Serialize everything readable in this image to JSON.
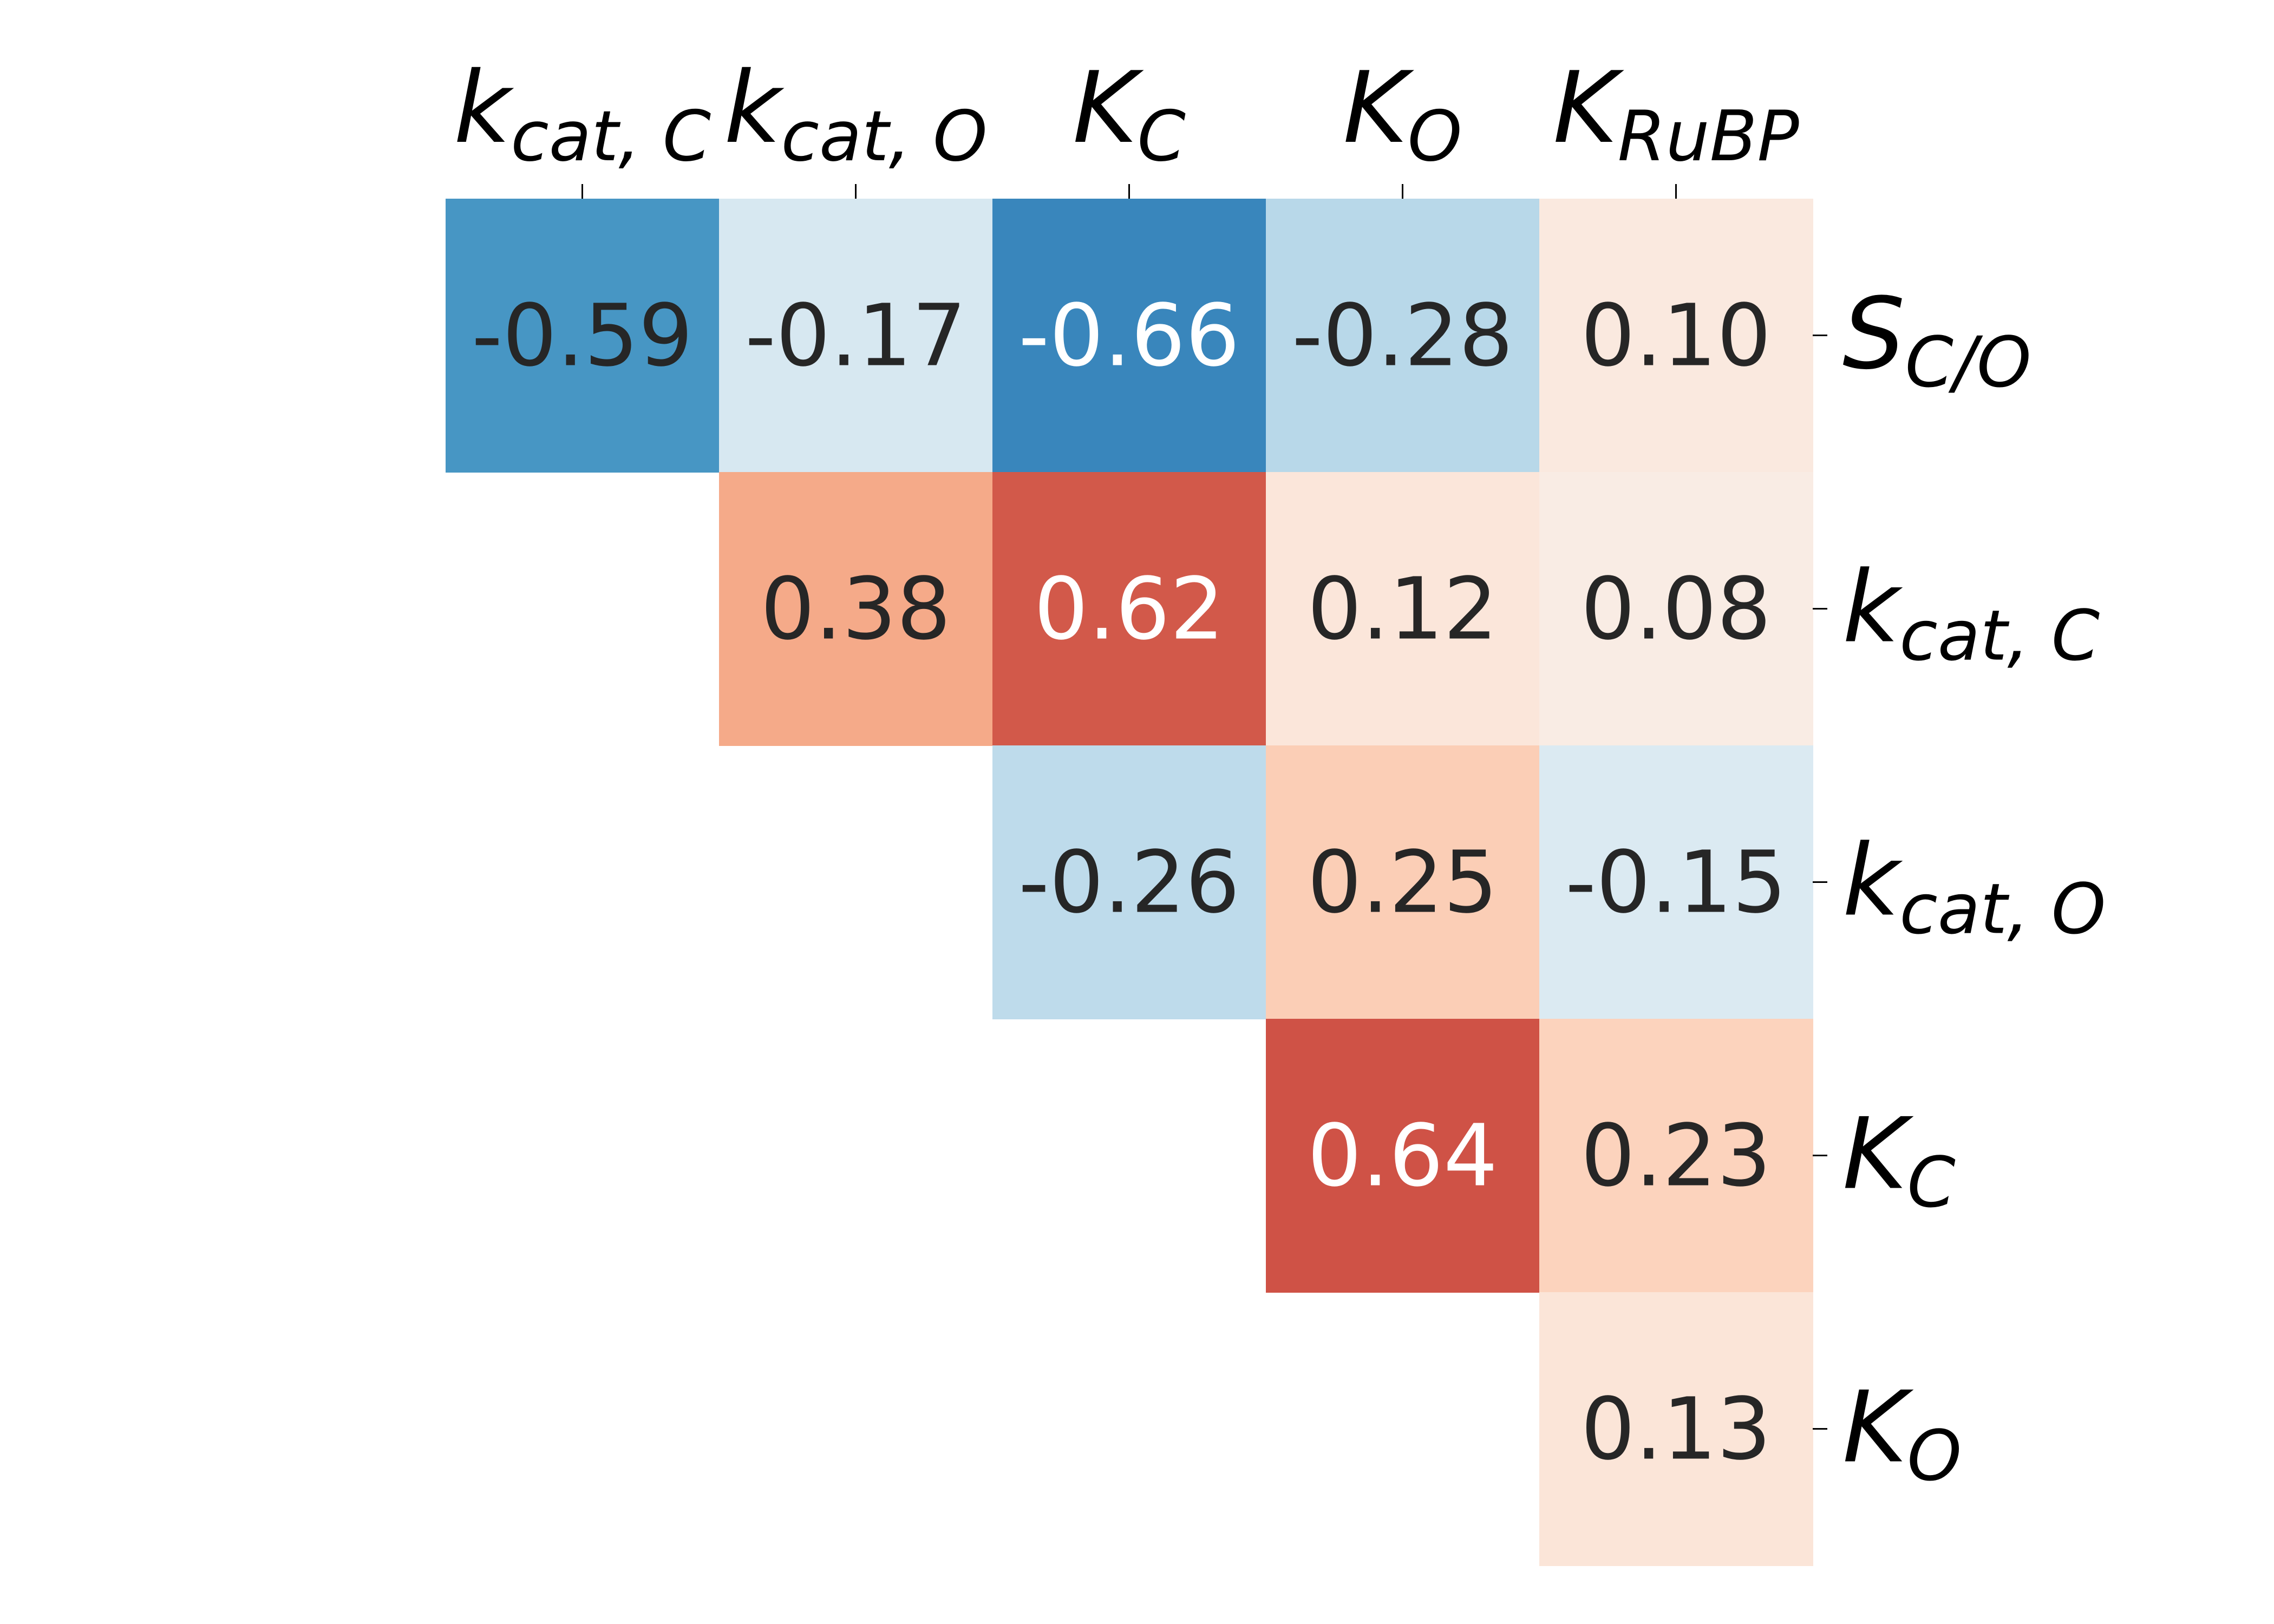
{
  "chart_data": {
    "type": "heatmap",
    "title": "",
    "xlabel": "",
    "ylabel": "",
    "x_labels": [
      {
        "base": "k",
        "sub": "cat, C"
      },
      {
        "base": "k",
        "sub": "cat, O"
      },
      {
        "base": "K",
        "sub": "C"
      },
      {
        "base": "K",
        "sub": "O"
      },
      {
        "base": "K",
        "sub": "RuBP"
      }
    ],
    "y_labels": [
      {
        "base": "S",
        "sub": "C/O"
      },
      {
        "base": "k",
        "sub": "cat, C"
      },
      {
        "base": "k",
        "sub": "cat, O"
      },
      {
        "base": "K",
        "sub": "C"
      },
      {
        "base": "K",
        "sub": "O"
      }
    ],
    "cells": [
      {
        "row": 0,
        "col": 0,
        "value": -0.59,
        "label": "-0.59"
      },
      {
        "row": 0,
        "col": 1,
        "value": -0.17,
        "label": "-0.17"
      },
      {
        "row": 0,
        "col": 2,
        "value": -0.66,
        "label": "-0.66"
      },
      {
        "row": 0,
        "col": 3,
        "value": -0.28,
        "label": "-0.28"
      },
      {
        "row": 0,
        "col": 4,
        "value": 0.1,
        "label": "0.10"
      },
      {
        "row": 1,
        "col": 1,
        "value": 0.38,
        "label": "0.38"
      },
      {
        "row": 1,
        "col": 2,
        "value": 0.62,
        "label": "0.62"
      },
      {
        "row": 1,
        "col": 3,
        "value": 0.12,
        "label": "0.12"
      },
      {
        "row": 1,
        "col": 4,
        "value": 0.08,
        "label": "0.08"
      },
      {
        "row": 2,
        "col": 2,
        "value": -0.26,
        "label": "-0.26"
      },
      {
        "row": 2,
        "col": 3,
        "value": 0.25,
        "label": "0.25"
      },
      {
        "row": 2,
        "col": 4,
        "value": -0.15,
        "label": "-0.15"
      },
      {
        "row": 3,
        "col": 3,
        "value": 0.64,
        "label": "0.64"
      },
      {
        "row": 3,
        "col": 4,
        "value": 0.23,
        "label": "0.23"
      },
      {
        "row": 4,
        "col": 4,
        "value": 0.13,
        "label": "0.13"
      }
    ],
    "color_scale": "diverging blue-white-red",
    "value_range": [
      -1,
      1
    ],
    "colorbar": false,
    "x_tick_position": "top",
    "y_tick_position": "right",
    "grid": false
  }
}
